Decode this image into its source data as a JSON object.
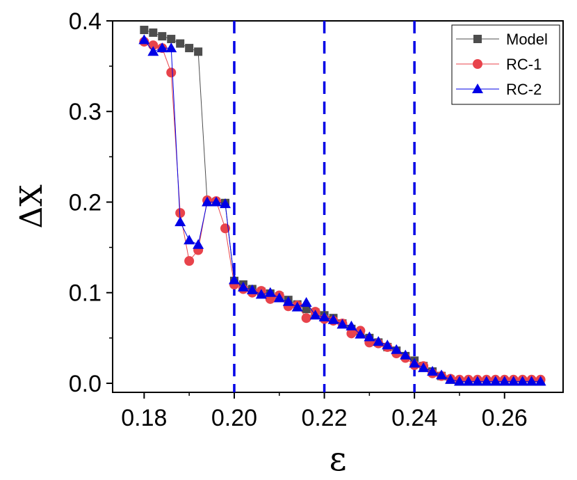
{
  "chart_data": {
    "type": "line",
    "title": "",
    "xlabel": "ε",
    "ylabel": "ΔX",
    "xlim": [
      0.173,
      0.273
    ],
    "ylim": [
      -0.01,
      0.4
    ],
    "xticks": [
      0.18,
      0.2,
      0.22,
      0.24,
      0.26
    ],
    "xtick_labels": [
      "0.18",
      "0.20",
      "0.22",
      "0.24",
      "0.26"
    ],
    "yticks": [
      0.0,
      0.1,
      0.2,
      0.3,
      0.4
    ],
    "ytick_labels": [
      "0.0",
      "0.1",
      "0.2",
      "0.3",
      "0.4"
    ],
    "grid": false,
    "legend": "top-right",
    "vlines": [
      {
        "x": 0.2,
        "color": "#0000e6",
        "style": "dashed"
      },
      {
        "x": 0.22,
        "color": "#0000e6",
        "style": "dashed"
      },
      {
        "x": 0.24,
        "color": "#0000e6",
        "style": "dashed"
      }
    ],
    "x": [
      0.18,
      0.182,
      0.184,
      0.186,
      0.188,
      0.19,
      0.192,
      0.194,
      0.196,
      0.198,
      0.2,
      0.202,
      0.204,
      0.206,
      0.208,
      0.21,
      0.212,
      0.214,
      0.216,
      0.218,
      0.22,
      0.222,
      0.224,
      0.226,
      0.228,
      0.23,
      0.232,
      0.234,
      0.236,
      0.238,
      0.24,
      0.242,
      0.244,
      0.246,
      0.248,
      0.25,
      0.252,
      0.254,
      0.256,
      0.258,
      0.26,
      0.262,
      0.264,
      0.266,
      0.268
    ],
    "series": [
      {
        "name": "Model",
        "color": "#4d4d4d",
        "marker": "square",
        "values": [
          0.39,
          0.387,
          0.383,
          0.38,
          0.375,
          0.37,
          0.366,
          0.2,
          0.2,
          0.199,
          0.113,
          0.109,
          0.104,
          0.101,
          0.099,
          0.096,
          0.092,
          0.087,
          0.082,
          0.078,
          0.075,
          0.072,
          0.066,
          0.06,
          0.055,
          0.05,
          0.045,
          0.04,
          0.036,
          0.03,
          0.025,
          0.019,
          0.013,
          0.008,
          0.004,
          0.002,
          0.002,
          0.002,
          0.002,
          0.002,
          0.002,
          0.002,
          0.002,
          0.002,
          0.002
        ]
      },
      {
        "name": "RC-1",
        "color": "#e8434b",
        "marker": "circle",
        "values": [
          0.377,
          0.373,
          0.37,
          0.343,
          0.188,
          0.135,
          0.147,
          0.202,
          0.201,
          0.171,
          0.109,
          0.104,
          0.1,
          0.102,
          0.093,
          0.097,
          0.085,
          0.086,
          0.072,
          0.079,
          0.071,
          0.069,
          0.066,
          0.055,
          0.058,
          0.045,
          0.044,
          0.04,
          0.033,
          0.028,
          0.02,
          0.019,
          0.011,
          0.008,
          0.005,
          0.004,
          0.004,
          0.004,
          0.004,
          0.004,
          0.004,
          0.004,
          0.004,
          0.004,
          0.004
        ]
      },
      {
        "name": "RC-2",
        "color": "#0000e6",
        "marker": "triangle",
        "values": [
          0.379,
          0.366,
          0.37,
          0.37,
          0.178,
          0.158,
          0.153,
          0.2,
          0.2,
          0.198,
          0.114,
          0.106,
          0.103,
          0.098,
          0.1,
          0.094,
          0.09,
          0.084,
          0.089,
          0.075,
          0.073,
          0.07,
          0.065,
          0.063,
          0.054,
          0.051,
          0.046,
          0.042,
          0.037,
          0.031,
          0.022,
          0.017,
          0.013,
          0.009,
          0.004,
          0.002,
          0.002,
          0.002,
          0.002,
          0.002,
          0.002,
          0.002,
          0.002,
          0.002,
          0.002
        ]
      }
    ]
  }
}
